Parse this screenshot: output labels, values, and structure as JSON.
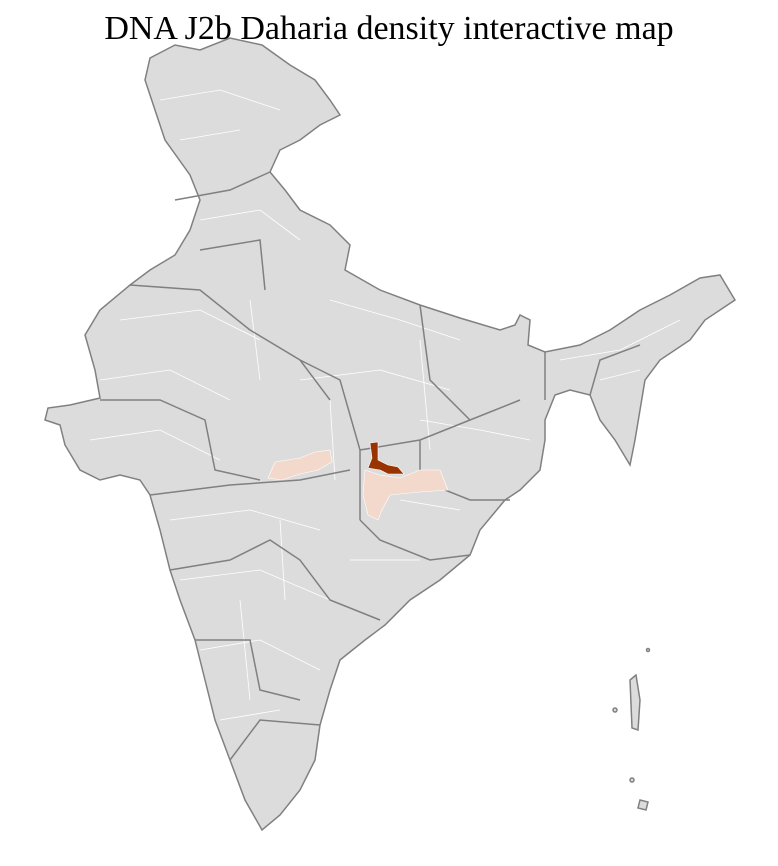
{
  "title": "DNA J2b Daharia density interactive map",
  "map": {
    "region": "India districts",
    "colors": {
      "base_fill": "#dcdcdc",
      "district_border": "#ffffff",
      "state_border": "#808080",
      "low_density": "#f2d9cc",
      "high_density": "#993300"
    }
  }
}
